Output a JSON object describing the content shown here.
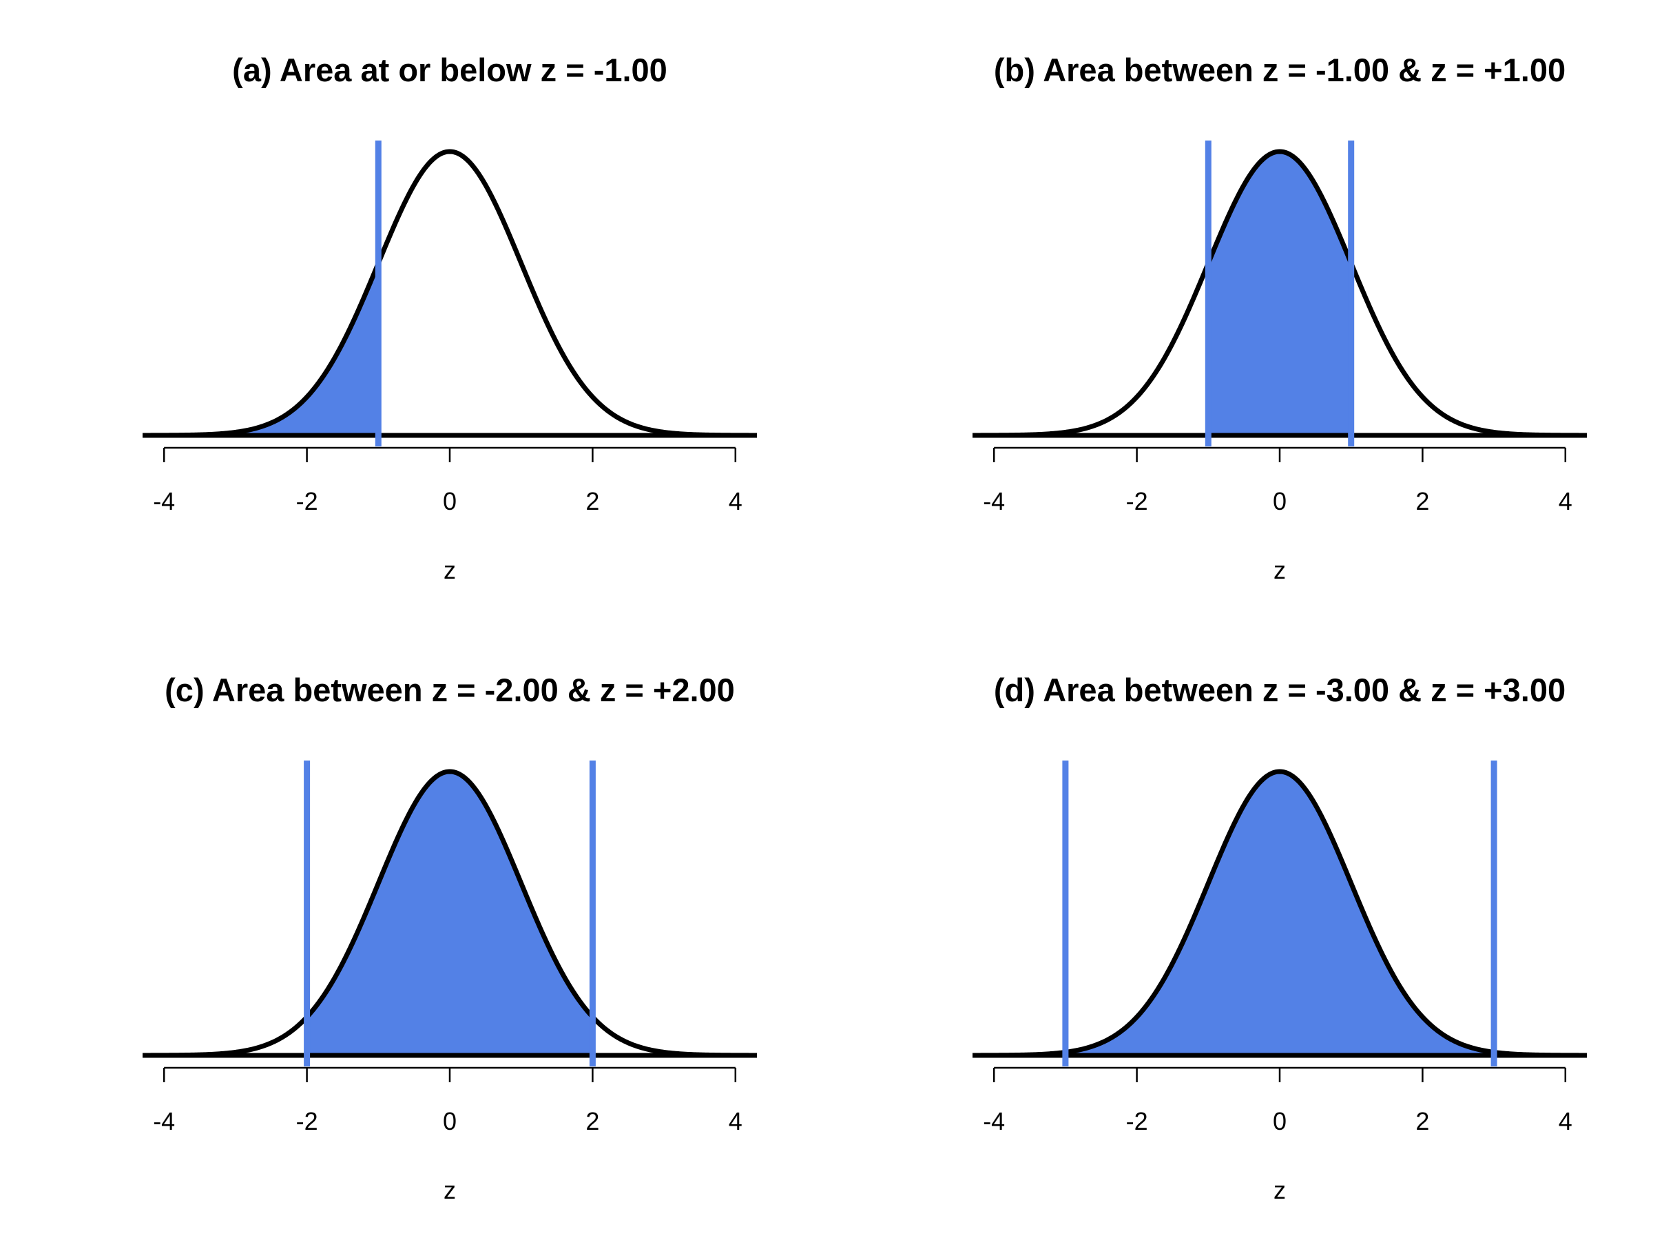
{
  "colors": {
    "fill": "#5381E6",
    "curve": "#000000",
    "marker": "#5381E6",
    "background": "#FFFFFF"
  },
  "chart_data": [
    {
      "type": "area",
      "title": "(a) Area at or below z = -1.00",
      "xlabel": "z",
      "ylabel": "",
      "xlim": [
        -4.3,
        4.3
      ],
      "xticks": [
        -4,
        -2,
        0,
        2,
        4
      ],
      "tick_labels": [
        "-4",
        "-2",
        "0",
        "2",
        "4"
      ],
      "curve": "standard normal density",
      "shaded_interval": [
        -4.3,
        -1.0
      ],
      "markers": [
        -1.0
      ],
      "grid": false
    },
    {
      "type": "area",
      "title": "(b) Area between z = -1.00 & z = +1.00",
      "xlabel": "z",
      "ylabel": "",
      "xlim": [
        -4.3,
        4.3
      ],
      "xticks": [
        -4,
        -2,
        0,
        2,
        4
      ],
      "tick_labels": [
        "-4",
        "-2",
        "0",
        "2",
        "4"
      ],
      "curve": "standard normal density",
      "shaded_interval": [
        -1.0,
        1.0
      ],
      "markers": [
        -1.0,
        1.0
      ],
      "grid": false
    },
    {
      "type": "area",
      "title": "(c) Area between z = -2.00 & z = +2.00",
      "xlabel": "z",
      "ylabel": "",
      "xlim": [
        -4.3,
        4.3
      ],
      "xticks": [
        -4,
        -2,
        0,
        2,
        4
      ],
      "tick_labels": [
        "-4",
        "-2",
        "0",
        "2",
        "4"
      ],
      "curve": "standard normal density",
      "shaded_interval": [
        -2.0,
        2.0
      ],
      "markers": [
        -2.0,
        2.0
      ],
      "grid": false
    },
    {
      "type": "area",
      "title": "(d) Area between z = -3.00 & z = +3.00",
      "xlabel": "z",
      "ylabel": "",
      "xlim": [
        -4.3,
        4.3
      ],
      "xticks": [
        -4,
        -2,
        0,
        2,
        4
      ],
      "tick_labels": [
        "-4",
        "-2",
        "0",
        "2",
        "4"
      ],
      "curve": "standard normal density",
      "shaded_interval": [
        -3.0,
        3.0
      ],
      "markers": [
        -3.0,
        3.0
      ],
      "grid": false
    }
  ]
}
